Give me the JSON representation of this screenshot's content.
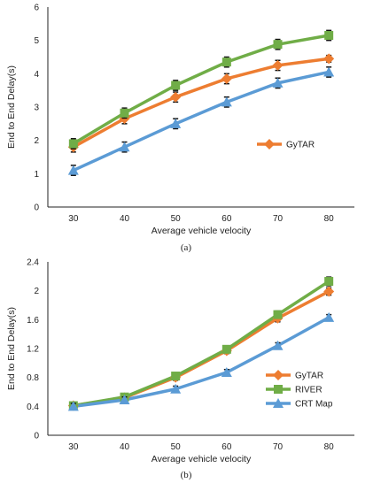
{
  "chart_data": [
    {
      "type": "line",
      "panel_label": "(a)",
      "xlabel": "Average vehicle velocity",
      "ylabel": "End to End Delay(s)",
      "categories": [
        "30",
        "40",
        "50",
        "60",
        "70",
        "80"
      ],
      "ylim": [
        0,
        6
      ],
      "yticks": [
        "0",
        "1",
        "2",
        "3",
        "4",
        "5",
        "6"
      ],
      "grid": false,
      "legend_position": "middle-right",
      "error_bars": true,
      "series": [
        {
          "name": "GyTAR",
          "color": "#ed7d31",
          "marker": "diamond",
          "in_legend": true,
          "values": [
            1.8,
            2.65,
            3.3,
            3.85,
            4.25,
            4.45
          ],
          "errors": [
            0.15,
            0.15,
            0.15,
            0.15,
            0.15,
            0.1
          ]
        },
        {
          "name": "",
          "color": "#70ad47",
          "marker": "square",
          "in_legend": false,
          "values": [
            1.9,
            2.82,
            3.65,
            4.35,
            4.88,
            5.15
          ],
          "errors": [
            0.15,
            0.15,
            0.15,
            0.15,
            0.15,
            0.15
          ]
        },
        {
          "name": "",
          "color": "#5b9bd5",
          "marker": "triangle",
          "in_legend": false,
          "values": [
            1.1,
            1.8,
            2.5,
            3.15,
            3.72,
            4.05
          ],
          "errors": [
            0.15,
            0.15,
            0.15,
            0.15,
            0.15,
            0.15
          ]
        }
      ]
    },
    {
      "type": "line",
      "panel_label": "(b)",
      "xlabel": "Average vehicle velocity",
      "ylabel": "End to End Delay(s)",
      "categories": [
        "30",
        "40",
        "50",
        "60",
        "70",
        "80"
      ],
      "ylim": [
        0,
        2.4
      ],
      "yticks": [
        "0",
        "0.4",
        "0.8",
        "1.2",
        "1.6",
        "2",
        "2.4"
      ],
      "grid": false,
      "legend_position": "right",
      "error_bars": true,
      "series": [
        {
          "name": "GyTAR",
          "color": "#ed7d31",
          "marker": "diamond",
          "in_legend": true,
          "values": [
            0.41,
            0.52,
            0.8,
            1.17,
            1.62,
            1.99
          ],
          "errors": [
            0.04,
            0.04,
            0.04,
            0.04,
            0.05,
            0.05
          ]
        },
        {
          "name": "RIVER",
          "color": "#70ad47",
          "marker": "square",
          "in_legend": true,
          "values": [
            0.41,
            0.53,
            0.82,
            1.19,
            1.67,
            2.13
          ],
          "errors": [
            0.04,
            0.04,
            0.04,
            0.04,
            0.05,
            0.06
          ]
        },
        {
          "name": "CRT Map",
          "color": "#5b9bd5",
          "marker": "triangle",
          "in_legend": true,
          "values": [
            0.4,
            0.49,
            0.64,
            0.87,
            1.24,
            1.63
          ],
          "errors": [
            0.04,
            0.04,
            0.04,
            0.04,
            0.04,
            0.04
          ]
        }
      ]
    }
  ]
}
